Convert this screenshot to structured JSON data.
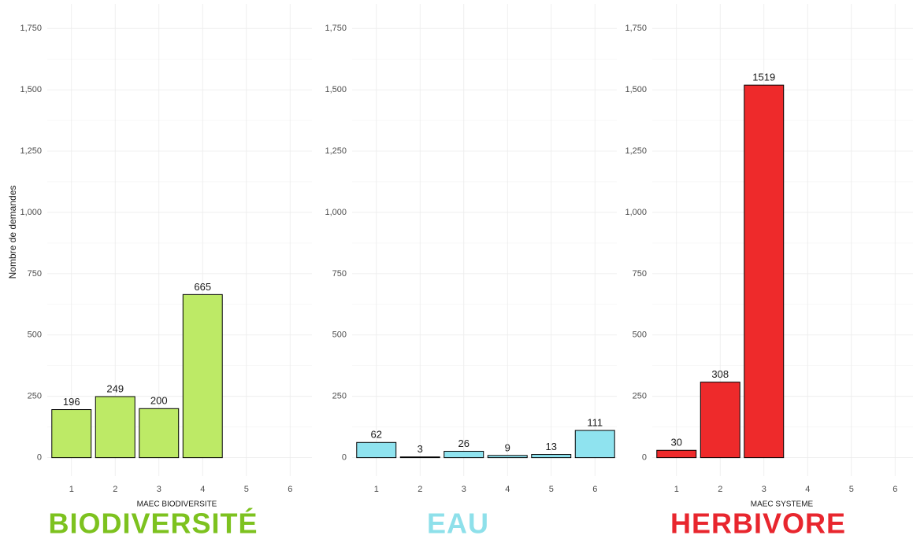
{
  "chart_data": [
    {
      "type": "bar",
      "categories": [
        "1",
        "2",
        "3",
        "4",
        "5",
        "6"
      ],
      "values": [
        196,
        249,
        200,
        665,
        null,
        null
      ],
      "color": "#bdea66",
      "ylim": [
        -75,
        1850
      ],
      "yticks": [
        0,
        250,
        500,
        750,
        {
          "value": 1000,
          "label": "1,000"
        },
        {
          "value": 1250,
          "label": "1,250"
        },
        {
          "value": 1500,
          "label": "1,500"
        },
        {
          "value": 1750,
          "label": "1,750"
        }
      ],
      "grid": true,
      "x_label": "MAEC BIODIVERSITE",
      "y_label": "Nombre de demandes",
      "panel_label": "BIODIVERSITÉ",
      "panel_label_color": "#7dc21f"
    },
    {
      "type": "bar",
      "categories": [
        "1",
        "2",
        "3",
        "4",
        "5",
        "6"
      ],
      "values": [
        62,
        3,
        26,
        9,
        13,
        111
      ],
      "color": "#8fe3ef",
      "ylim": [
        -75,
        1850
      ],
      "yticks": [
        0,
        250,
        500,
        750,
        {
          "value": 1000,
          "label": "1,000"
        },
        {
          "value": 1250,
          "label": "1,250"
        },
        {
          "value": 1500,
          "label": "1,500"
        },
        {
          "value": 1750,
          "label": "1,750"
        }
      ],
      "grid": true,
      "panel_label": "EAU",
      "panel_label_color": "#8ee0ea"
    },
    {
      "type": "bar",
      "categories": [
        "1",
        "2",
        "3",
        "4",
        "5",
        "6"
      ],
      "values": [
        30,
        308,
        1519,
        null,
        null,
        null
      ],
      "color": "#ee2a2b",
      "ylim": [
        -75,
        1850
      ],
      "yticks": [
        0,
        250,
        500,
        750,
        {
          "value": 1000,
          "label": "1,000"
        },
        {
          "value": 1250,
          "label": "1,250"
        },
        {
          "value": 1500,
          "label": "1,500"
        },
        {
          "value": 1750,
          "label": "1,750"
        }
      ],
      "grid": true,
      "x_label": "MAEC SYSTEME",
      "panel_label": "HERBIVORE",
      "panel_label_color": "#e8262e"
    }
  ]
}
